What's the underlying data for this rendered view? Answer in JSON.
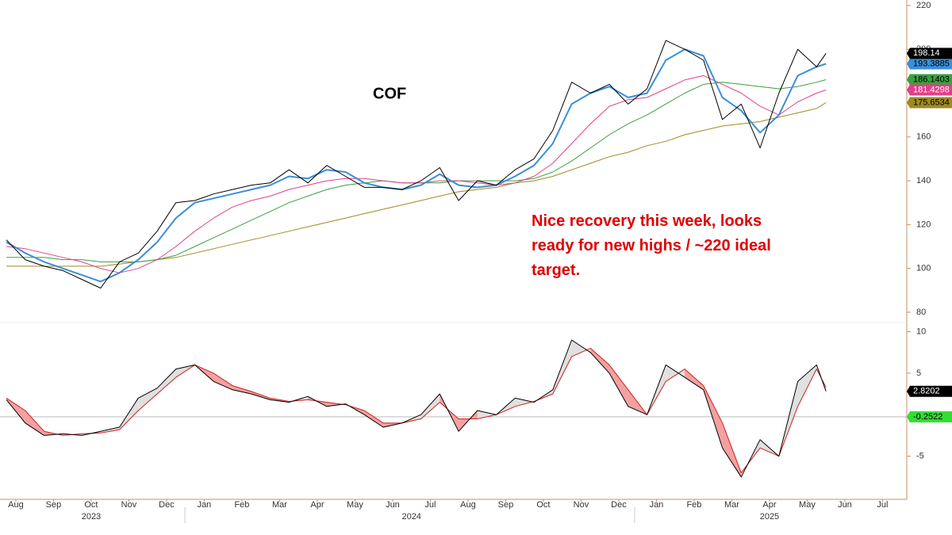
{
  "chart_data": [
    {
      "type": "line",
      "annotations": [
        "COF"
      ],
      "annotation_text": [
        "Nice recovery this week, looks",
        "ready for new highs / ~220 ideal",
        "target."
      ],
      "xlim": [
        0.08,
        24.08
      ],
      "x": [
        0.25,
        0.75,
        1.25,
        1.75,
        2.25,
        2.75,
        3.25,
        3.75,
        4.25,
        4.75,
        5.25,
        5.75,
        6.25,
        6.75,
        7.25,
        7.75,
        8.25,
        8.75,
        9.25,
        9.75,
        10.25,
        10.75,
        11.25,
        11.75,
        12.25,
        12.75,
        13.25,
        13.75,
        14.25,
        14.75,
        15.25,
        15.75,
        16.25,
        16.75,
        17.25,
        17.75,
        18.25,
        18.75,
        19.25,
        19.75,
        20.25,
        20.75,
        21.25,
        21.75,
        22.0
      ],
      "ylim": [
        76,
        222.5
      ],
      "yticks": [
        80,
        100,
        120,
        140,
        160,
        200,
        220
      ],
      "series": [
        {
          "color": "#a08a20",
          "values": [
            101,
            101,
            101,
            101,
            101,
            101,
            102,
            103,
            104,
            105,
            107,
            109,
            111,
            113,
            115,
            117,
            119,
            121,
            123,
            125,
            127,
            129,
            131,
            133,
            135,
            136,
            137,
            139,
            140,
            142,
            145,
            148,
            151,
            153,
            156,
            158,
            161,
            163,
            165,
            166,
            167,
            169,
            171,
            173,
            175.6534
          ]
        },
        {
          "color": "#3aa040",
          "values": [
            105,
            105,
            105,
            104,
            104,
            103,
            103,
            103,
            104,
            106,
            110,
            114,
            118,
            122,
            126,
            130,
            133,
            136,
            138,
            139,
            140,
            139,
            139,
            139,
            140,
            140,
            140,
            140,
            141,
            144,
            149,
            155,
            161,
            166,
            170,
            175,
            180,
            184,
            185,
            184,
            183,
            182,
            183,
            185,
            186.1403
          ]
        },
        {
          "color": "#e0408a",
          "values": [
            110,
            109,
            107,
            105,
            103,
            100,
            98,
            100,
            104,
            110,
            117,
            123,
            128,
            131,
            133,
            136,
            138,
            140,
            141,
            141,
            140,
            139,
            139,
            140,
            140,
            139,
            138,
            139,
            142,
            148,
            157,
            166,
            174,
            177,
            178,
            182,
            186,
            188,
            184,
            180,
            174,
            170,
            176,
            180,
            181.4298
          ]
        },
        {
          "color": "#3a8fd8",
          "values": [
            112,
            107,
            103,
            100,
            97,
            94,
            98,
            104,
            112,
            123,
            130,
            132,
            134,
            136,
            138,
            142,
            141,
            145,
            144,
            139,
            137,
            136,
            138,
            143,
            138,
            137,
            138,
            142,
            147,
            157,
            175,
            180,
            183,
            178,
            180,
            195,
            200,
            197,
            178,
            172,
            162,
            170,
            188,
            192,
            193.3885
          ]
        },
        {
          "color": "#000000",
          "values": [
            113,
            104,
            101,
            99,
            95,
            91,
            103,
            107,
            117,
            130,
            131,
            134,
            136,
            138,
            139,
            145,
            139,
            147,
            142,
            137,
            137,
            136,
            140,
            146,
            131,
            140,
            138,
            145,
            150,
            163,
            185,
            180,
            184,
            175,
            182,
            204,
            200,
            195,
            168,
            175,
            155,
            180,
            200,
            192,
            198.14
          ]
        }
      ]
    },
    {
      "type": "line",
      "xlim": [
        0.08,
        24.08
      ],
      "x": [
        0.25,
        0.75,
        1.25,
        1.75,
        2.25,
        2.75,
        3.25,
        3.75,
        4.25,
        4.75,
        5.25,
        5.75,
        6.25,
        6.75,
        7.25,
        7.75,
        8.25,
        8.75,
        9.25,
        9.75,
        10.25,
        10.75,
        11.25,
        11.75,
        12.25,
        12.75,
        13.25,
        13.75,
        14.25,
        14.75,
        15.25,
        15.75,
        16.25,
        16.75,
        17.25,
        17.75,
        18.25,
        18.75,
        19.25,
        19.75,
        20.25,
        20.75,
        21.25,
        21.75,
        22.0
      ],
      "ylim": [
        -10,
        11
      ],
      "yticks": [
        -5,
        5,
        10
      ],
      "series": [
        {
          "color": "#d02020",
          "values": [
            2,
            0.5,
            -2,
            -2.5,
            -2.3,
            -2.2,
            -1.8,
            0.5,
            2.5,
            4.5,
            6,
            5,
            3.5,
            2.8,
            2,
            1.6,
            1.8,
            1.5,
            1.2,
            0.5,
            -1,
            -1,
            -0.5,
            1.5,
            -0.5,
            -0.5,
            0,
            1,
            1.6,
            2.5,
            7,
            8,
            6,
            3,
            0,
            4,
            5.5,
            3.5,
            -1,
            -7,
            -4,
            -5,
            1,
            5.5,
            3.3
          ]
        },
        {
          "color": "#000000",
          "values": [
            1.8,
            -1,
            -2.5,
            -2.3,
            -2.5,
            -2,
            -1.5,
            2,
            3.2,
            5.5,
            6,
            4,
            3,
            2.5,
            1.8,
            1.5,
            2.2,
            1,
            1.3,
            0,
            -1.5,
            -1,
            0,
            2.5,
            -2,
            0.5,
            0,
            2,
            1.5,
            3,
            9,
            7.5,
            5,
            1,
            0,
            6,
            4.5,
            3,
            -4,
            -7.5,
            -3,
            -5,
            4,
            6,
            2.8202
          ]
        }
      ],
      "reference_line": {
        "value": -0.2522,
        "color": "#33dd33"
      },
      "xticks": [
        {
          "value": 0.5,
          "label": "Aug"
        },
        {
          "value": 1.5,
          "label": "Sep"
        },
        {
          "value": 2.5,
          "label": "Oct"
        },
        {
          "value": 3.5,
          "label": "Nov"
        },
        {
          "value": 4.5,
          "label": "Dec"
        },
        {
          "value": 5.5,
          "label": "Jan"
        },
        {
          "value": 6.5,
          "label": "Feb"
        },
        {
          "value": 7.5,
          "label": "Mar"
        },
        {
          "value": 8.5,
          "label": "Apr"
        },
        {
          "value": 9.5,
          "label": "May"
        },
        {
          "value": 10.5,
          "label": "Jun"
        },
        {
          "value": 11.5,
          "label": "Jul"
        },
        {
          "value": 12.5,
          "label": "Aug"
        },
        {
          "value": 13.5,
          "label": "Sep"
        },
        {
          "value": 14.5,
          "label": "Oct"
        },
        {
          "value": 15.5,
          "label": "Nov"
        },
        {
          "value": 16.5,
          "label": "Dec"
        },
        {
          "value": 17.5,
          "label": "Jan"
        },
        {
          "value": 18.5,
          "label": "Feb"
        },
        {
          "value": 19.5,
          "label": "Mar"
        },
        {
          "value": 20.5,
          "label": "Apr"
        },
        {
          "value": 21.5,
          "label": "May"
        },
        {
          "value": 22.5,
          "label": "Jun"
        },
        {
          "value": 23.5,
          "label": "Jul"
        }
      ],
      "year_ticks": [
        {
          "value": 2.5,
          "label": "2023"
        },
        {
          "value": 11.0,
          "label": "2024"
        },
        {
          "value": 20.5,
          "label": "2025"
        }
      ]
    }
  ]
}
